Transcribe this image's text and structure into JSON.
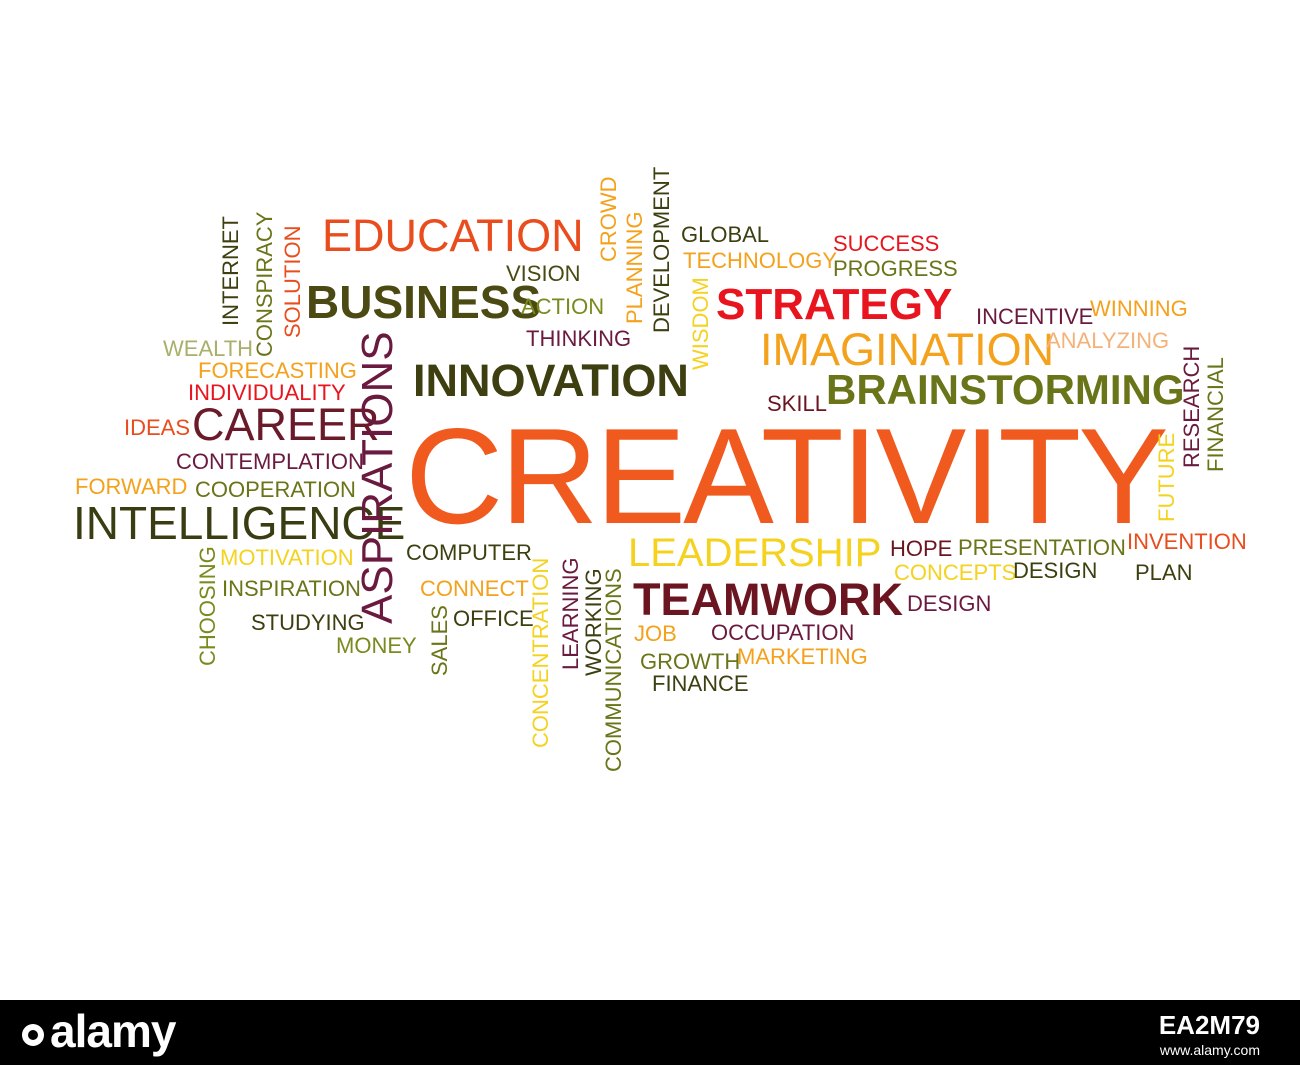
{
  "words": [
    {
      "text": "CREATIVITY",
      "color": "#f05a1e"
    },
    {
      "text": "EDUCATION",
      "color": "#e94d1d"
    },
    {
      "text": "BUSINESS",
      "color": "#4b4a12"
    },
    {
      "text": "INNOVATION",
      "color": "#3e3f10"
    },
    {
      "text": "STRATEGY",
      "color": "#e8141e"
    },
    {
      "text": "IMAGINATION",
      "color": "#f4a11c"
    },
    {
      "text": "BRAINSTORMING",
      "color": "#6a7418"
    },
    {
      "text": "CAREER",
      "color": "#6b1a2a"
    },
    {
      "text": "INTELLIGENCE",
      "color": "#3a3d11"
    },
    {
      "text": "ASPIRATIONS",
      "color": "#6b1a3f"
    },
    {
      "text": "LEADERSHIP",
      "color": "#f5d21f"
    },
    {
      "text": "TEAMWORK",
      "color": "#6b1520"
    },
    {
      "text": "VISION",
      "color": "#4b4a12"
    },
    {
      "text": "ACTION",
      "color": "#7a8a1e"
    },
    {
      "text": "THINKING",
      "color": "#6b1a3f"
    },
    {
      "text": "GLOBAL",
      "color": "#3e3f10"
    },
    {
      "text": "TECHNOLOGY",
      "color": "#f4a11c"
    },
    {
      "text": "SUCCESS",
      "color": "#e8141e"
    },
    {
      "text": "PROGRESS",
      "color": "#6a7418"
    },
    {
      "text": "INCENTIVE",
      "color": "#6b1a3f"
    },
    {
      "text": "WINNING",
      "color": "#f4a11c"
    },
    {
      "text": "ANALYZING",
      "color": "#f4b27a"
    },
    {
      "text": "SKILL",
      "color": "#6b1520"
    },
    {
      "text": "WEALTH",
      "color": "#a9b06a"
    },
    {
      "text": "FORECASTING",
      "color": "#f4a11c"
    },
    {
      "text": "INDIVIDUALITY",
      "color": "#e8141e"
    },
    {
      "text": "IDEAS",
      "color": "#e94d1d"
    },
    {
      "text": "CONTEMPLATION",
      "color": "#6b1a3f"
    },
    {
      "text": "FORWARD",
      "color": "#f4a11c"
    },
    {
      "text": "COOPERATION",
      "color": "#6a7418"
    },
    {
      "text": "MOTIVATION",
      "color": "#f5d21f"
    },
    {
      "text": "INSPIRATION",
      "color": "#6a7418"
    },
    {
      "text": "STUDYING",
      "color": "#3e3f10"
    },
    {
      "text": "MONEY",
      "color": "#7a8a1e"
    },
    {
      "text": "COMPUTER",
      "color": "#3e3f10"
    },
    {
      "text": "CONNECT",
      "color": "#f4a11c"
    },
    {
      "text": "OFFICE",
      "color": "#3e3f10"
    },
    {
      "text": "HOPE",
      "color": "#6b1520"
    },
    {
      "text": "PRESENTATION",
      "color": "#6a7418"
    },
    {
      "text": "INVENTION",
      "color": "#e94d1d"
    },
    {
      "text": "CONCEPTS",
      "color": "#f5d21f"
    },
    {
      "text": "DESIGN",
      "color": "#3e3f10"
    },
    {
      "text": "PLAN",
      "color": "#3e3f10"
    },
    {
      "text": "DESIGN",
      "color": "#6b1a3f"
    },
    {
      "text": "OCCUPATION",
      "color": "#6b1a3f"
    },
    {
      "text": "JOB",
      "color": "#f4a11c"
    },
    {
      "text": "GROWTH",
      "color": "#6a7418"
    },
    {
      "text": "MARKETING",
      "color": "#f4a11c"
    },
    {
      "text": "FINANCE",
      "color": "#3e3f10"
    },
    {
      "text": "INTERNET",
      "color": "#3e3f10"
    },
    {
      "text": "CONSPIRACY",
      "color": "#6a7418"
    },
    {
      "text": "SOLUTION",
      "color": "#e94d1d"
    },
    {
      "text": "CROWD",
      "color": "#f4a11c"
    },
    {
      "text": "PLANNING",
      "color": "#f4a11c"
    },
    {
      "text": "DEVELOPMENT",
      "color": "#3e3f10"
    },
    {
      "text": "WISDOM",
      "color": "#f5d21f"
    },
    {
      "text": "RESEARCH",
      "color": "#6b1a3f"
    },
    {
      "text": "FINANCIAL",
      "color": "#6a7418"
    },
    {
      "text": "FUTURE",
      "color": "#f5d21f"
    },
    {
      "text": "CHOOSING",
      "color": "#7a8a1e"
    },
    {
      "text": "SALES",
      "color": "#6a7418"
    },
    {
      "text": "CONCENTRATION",
      "color": "#f5d21f"
    },
    {
      "text": "LEARNING",
      "color": "#6b1a3f"
    },
    {
      "text": "WORKING",
      "color": "#3e3f10"
    },
    {
      "text": "COMMUNICATIONS",
      "color": "#6a7418"
    }
  ],
  "watermark": {
    "brand": "alamy",
    "image_id": "EA2M79",
    "url": "www.alamy.com"
  }
}
